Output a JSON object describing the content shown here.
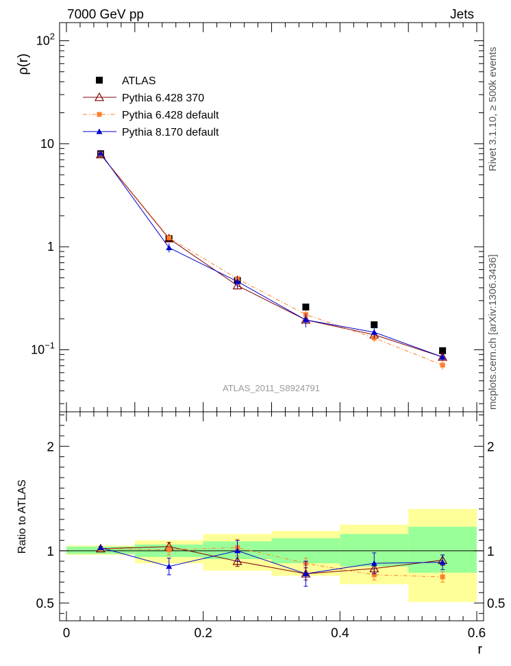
{
  "header": {
    "left": "7000 GeV pp",
    "right": "Jets"
  },
  "side_labels": {
    "rivet": "Rivet 3.1.10, ≥ 500k events",
    "mcplots": "mcplots.cern.ch [arXiv:1306.3436]"
  },
  "watermark": "ATLAS_2011_S8924791",
  "colors": {
    "atlas": "#000000",
    "pythia6_370": "#800000",
    "pythia6_default": "#ff7f2a",
    "pythia8_default": "#0000cc",
    "band_outer": "#ffff99",
    "band_inner": "#99ff99"
  },
  "chart_data": [
    {
      "type": "line",
      "panel": "main",
      "ylabel": "ρ(r)",
      "yscale": "log",
      "ylim": [
        0.025,
        150
      ],
      "xlim": [
        -0.01,
        0.61
      ],
      "y_ticks": [
        {
          "value": 0.1,
          "label": "10",
          "sup": "−1"
        },
        {
          "value": 1,
          "label": "1",
          "sup": ""
        },
        {
          "value": 10,
          "label": "10",
          "sup": ""
        },
        {
          "value": 100,
          "label": "10",
          "sup": "2"
        }
      ],
      "legend_position": "top-left",
      "x": [
        0.05,
        0.15,
        0.25,
        0.35,
        0.45,
        0.55
      ],
      "series": [
        {
          "name": "ATLAS",
          "key": "atlas",
          "marker": "square",
          "values": [
            8.0,
            1.2,
            0.47,
            0.26,
            0.175,
            0.098
          ]
        },
        {
          "name": "Pythia 6.428 370",
          "key": "pythia6_370",
          "marker": "open-triangle",
          "line": "solid",
          "values": [
            7.85,
            1.2,
            0.42,
            0.195,
            0.14,
            0.085
          ],
          "errors": [
            0.2,
            0.06,
            0.03,
            0.015,
            0.015,
            0.006
          ]
        },
        {
          "name": "Pythia 6.428 default",
          "key": "pythia6_default",
          "marker": "small-square",
          "line": "dashdot",
          "values": [
            7.95,
            1.22,
            0.49,
            0.22,
            0.13,
            0.071
          ],
          "errors": [
            0.2,
            0.06,
            0.04,
            0.02,
            0.012,
            0.007
          ]
        },
        {
          "name": "Pythia 8.170 default",
          "key": "pythia8_default",
          "marker": "triangle",
          "line": "solid",
          "values": [
            8.1,
            0.98,
            0.46,
            0.195,
            0.148,
            0.085
          ],
          "errors": [
            0.2,
            0.1,
            0.06,
            0.03,
            0.02,
            0.006
          ]
        }
      ]
    },
    {
      "type": "line",
      "panel": "ratio",
      "ylabel": "Ratio to ATLAS",
      "xlabel": "r",
      "ylim": [
        0.33,
        2.33
      ],
      "xlim": [
        -0.01,
        0.61
      ],
      "y_ticks": [
        0.5,
        1,
        2
      ],
      "x_ticks": [
        0,
        0.2,
        0.4,
        0.6
      ],
      "x_tick_labels": [
        "0",
        "0.2",
        "0.4",
        "0.6"
      ],
      "reference_line": 1,
      "bands": [
        {
          "x0": 0.0,
          "x1": 0.1,
          "outer": [
            0.96,
            1.05
          ],
          "inner": [
            0.97,
            1.04
          ]
        },
        {
          "x0": 0.1,
          "x1": 0.2,
          "outer": [
            0.88,
            1.1
          ],
          "inner": [
            0.94,
            1.06
          ]
        },
        {
          "x0": 0.2,
          "x1": 0.3,
          "outer": [
            0.81,
            1.16
          ],
          "inner": [
            0.92,
            1.09
          ]
        },
        {
          "x0": 0.3,
          "x1": 0.4,
          "outer": [
            0.76,
            1.19
          ],
          "inner": [
            0.88,
            1.12
          ]
        },
        {
          "x0": 0.4,
          "x1": 0.5,
          "outer": [
            0.68,
            1.25
          ],
          "inner": [
            0.85,
            1.16
          ]
        },
        {
          "x0": 0.5,
          "x1": 0.6,
          "outer": [
            0.51,
            1.4
          ],
          "inner": [
            0.79,
            1.23
          ]
        }
      ],
      "x": [
        0.05,
        0.15,
        0.25,
        0.35,
        0.45,
        0.55
      ],
      "series": [
        {
          "name": "Pythia 6.428 370",
          "key": "pythia6_370",
          "marker": "open-triangle",
          "line": "solid",
          "values": [
            1.02,
            1.04,
            0.9,
            0.78,
            0.83,
            0.91
          ],
          "errors": [
            0.01,
            0.04,
            0.05,
            0.06,
            0.05,
            0.05
          ]
        },
        {
          "name": "Pythia 6.428 default",
          "key": "pythia6_default",
          "marker": "small-square",
          "line": "dashdot",
          "values": [
            1.02,
            1.01,
            1.03,
            0.88,
            0.77,
            0.75
          ],
          "errors": [
            0.01,
            0.05,
            0.08,
            0.05,
            0.05,
            0.05
          ]
        },
        {
          "name": "Pythia 8.170 default",
          "key": "pythia8_default",
          "marker": "triangle",
          "line": "solid",
          "values": [
            1.03,
            0.85,
            1.0,
            0.78,
            0.88,
            0.89
          ],
          "errors": [
            0.01,
            0.08,
            0.1,
            0.12,
            0.1,
            0.07
          ]
        }
      ]
    }
  ]
}
